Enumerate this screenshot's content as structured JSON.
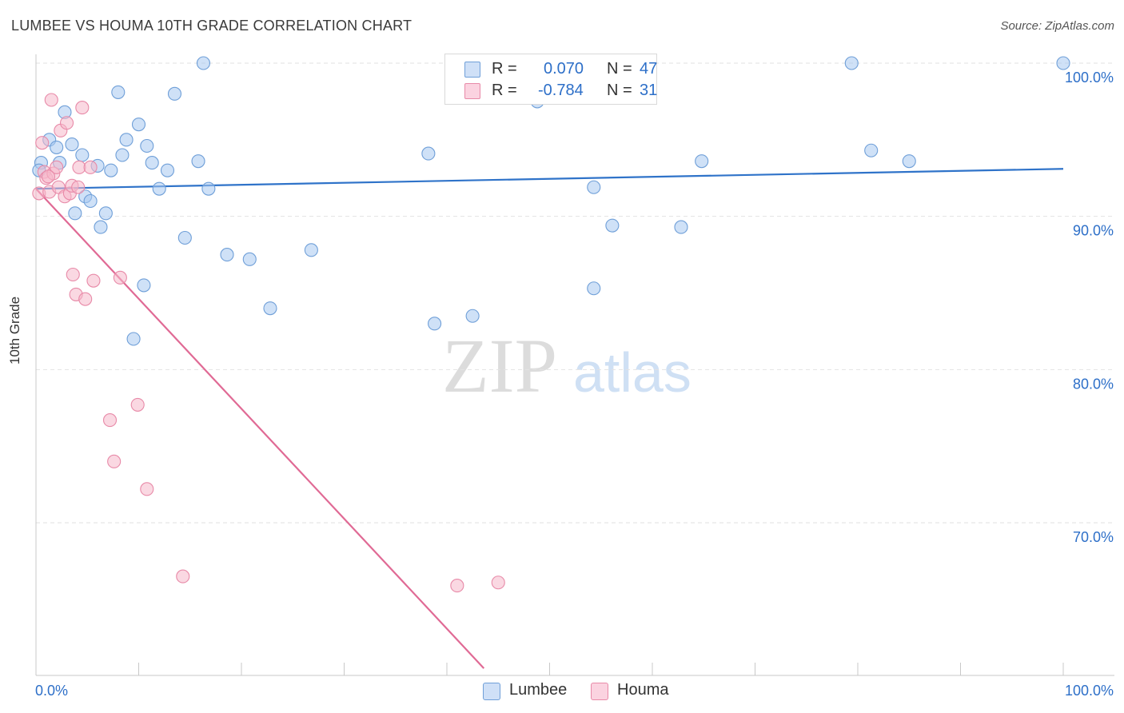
{
  "header": {
    "title": "LUMBEE VS HOUMA 10TH GRADE CORRELATION CHART",
    "source": "Source: ZipAtlas.com"
  },
  "watermark": {
    "zip": "ZIP",
    "atlas": "atlas"
  },
  "legend": {
    "rows": [
      {
        "r_label": "R =",
        "r_value": "0.070",
        "n_label": "N =",
        "n_value": "47",
        "color": "#a8c8f0"
      },
      {
        "r_label": "R =",
        "r_value": "-0.784",
        "n_label": "N =",
        "n_value": "31",
        "color": "#f5b8cb"
      }
    ]
  },
  "bottom_legend": [
    {
      "label": "Lumbee",
      "color": "#a8c8f0"
    },
    {
      "label": "Houma",
      "color": "#f5b8cb"
    }
  ],
  "colors": {
    "lumbee_fill": "#a8c8f0",
    "lumbee_stroke": "#6f9fd8",
    "lumbee_line": "#2f73c9",
    "houma_fill": "#f5b8cb",
    "houma_stroke": "#e88aa8",
    "houma_line": "#e06a95",
    "tick_label": "#2d6fc8",
    "grid": "#e2e2e2"
  },
  "chart_data": {
    "type": "scatter",
    "title": "LUMBEE VS HOUMA 10TH GRADE CORRELATION CHART",
    "xlabel": "",
    "ylabel": "10th Grade",
    "xlim": [
      0,
      100
    ],
    "ylim": [
      60.5,
      101.5
    ],
    "x_tick_labels": [
      "0.0%",
      "100.0%"
    ],
    "y_ticks": [
      70,
      80,
      90,
      100
    ],
    "y_tick_labels": [
      "70.0%",
      "80.0%",
      "90.0%",
      "100.0%"
    ],
    "grid": true,
    "legend_position": "top-center",
    "series": [
      {
        "name": "Lumbee",
        "points": [
          [
            0.5,
            93.5
          ],
          [
            1.3,
            95.0
          ],
          [
            2.0,
            94.5
          ],
          [
            2.3,
            93.5
          ],
          [
            2.8,
            96.8
          ],
          [
            3.5,
            94.7
          ],
          [
            3.8,
            90.2
          ],
          [
            4.5,
            94.0
          ],
          [
            4.8,
            91.3
          ],
          [
            5.3,
            91.0
          ],
          [
            6.0,
            93.3
          ],
          [
            6.3,
            89.3
          ],
          [
            6.8,
            90.2
          ],
          [
            7.3,
            93.0
          ],
          [
            8.0,
            98.1
          ],
          [
            8.4,
            94.0
          ],
          [
            8.8,
            95.0
          ],
          [
            9.5,
            82.0
          ],
          [
            10.0,
            96.0
          ],
          [
            10.5,
            85.5
          ],
          [
            10.8,
            94.6
          ],
          [
            11.3,
            93.5
          ],
          [
            12.0,
            91.8
          ],
          [
            12.8,
            93.0
          ],
          [
            13.5,
            98.0
          ],
          [
            14.5,
            88.6
          ],
          [
            15.8,
            93.6
          ],
          [
            16.3,
            100.0
          ],
          [
            16.8,
            91.8
          ],
          [
            18.6,
            87.5
          ],
          [
            20.8,
            87.2
          ],
          [
            22.8,
            84.0
          ],
          [
            26.8,
            87.8
          ],
          [
            38.2,
            94.1
          ],
          [
            38.8,
            83.0
          ],
          [
            42.5,
            83.5
          ],
          [
            48.8,
            97.5
          ],
          [
            54.3,
            91.9
          ],
          [
            54.3,
            85.3
          ],
          [
            56.1,
            89.4
          ],
          [
            62.8,
            89.3
          ],
          [
            64.8,
            93.6
          ],
          [
            79.4,
            100.0
          ],
          [
            81.3,
            94.3
          ],
          [
            85.0,
            93.6
          ],
          [
            100.0,
            100.0
          ],
          [
            0.3,
            93.0
          ]
        ]
      },
      {
        "name": "Houma",
        "points": [
          [
            0.3,
            91.5
          ],
          [
            0.6,
            94.8
          ],
          [
            0.8,
            92.9
          ],
          [
            1.0,
            92.5
          ],
          [
            1.3,
            91.6
          ],
          [
            1.5,
            97.6
          ],
          [
            1.7,
            92.8
          ],
          [
            2.0,
            93.2
          ],
          [
            2.2,
            91.9
          ],
          [
            2.4,
            95.6
          ],
          [
            2.8,
            91.3
          ],
          [
            3.0,
            96.1
          ],
          [
            3.3,
            91.5
          ],
          [
            3.5,
            92.0
          ],
          [
            3.6,
            86.2
          ],
          [
            3.9,
            84.9
          ],
          [
            4.1,
            91.9
          ],
          [
            4.2,
            93.2
          ],
          [
            4.5,
            97.1
          ],
          [
            4.8,
            84.6
          ],
          [
            5.3,
            93.2
          ],
          [
            5.6,
            85.8
          ],
          [
            7.2,
            76.7
          ],
          [
            7.6,
            74.0
          ],
          [
            8.2,
            86.0
          ],
          [
            9.9,
            77.7
          ],
          [
            10.8,
            72.2
          ],
          [
            14.3,
            66.5
          ],
          [
            41.0,
            65.9
          ],
          [
            45.0,
            66.1
          ],
          [
            1.2,
            92.6
          ]
        ]
      }
    ],
    "trendlines": [
      {
        "name": "Lumbee",
        "x": [
          0,
          100
        ],
        "y": [
          91.8,
          93.1
        ]
      },
      {
        "name": "Houma",
        "x": [
          0,
          43.6
        ],
        "y": [
          91.8,
          60.5
        ]
      }
    ]
  }
}
